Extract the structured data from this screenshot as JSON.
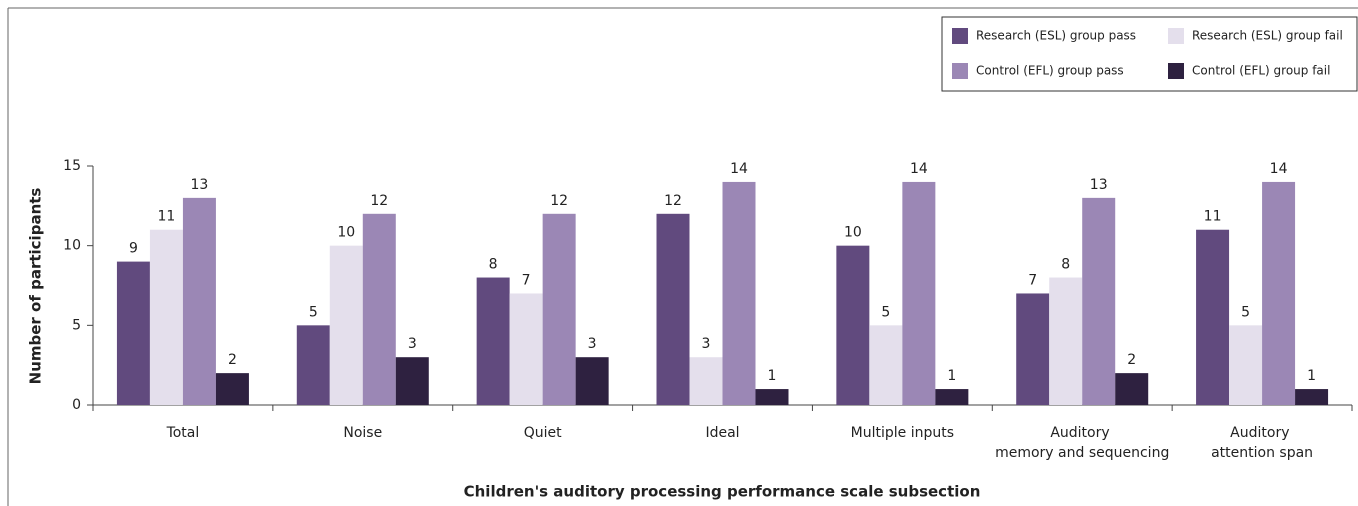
{
  "chart_data": {
    "type": "bar",
    "x_label": "Children's auditory processing performance scale subsection",
    "y_label": "Number of participants",
    "categories": [
      "Total",
      "Noise",
      "Quiet",
      "Ideal",
      "Multiple inputs",
      "Auditory memory and sequencing",
      "Auditory attention span"
    ],
    "series": [
      {
        "name": "Research (ESL) group pass",
        "color": "#614a7e",
        "values": [
          9,
          5,
          8,
          12,
          10,
          7,
          11
        ]
      },
      {
        "name": "Research (ESL) group fail",
        "color": "#e4dfec",
        "values": [
          11,
          10,
          7,
          3,
          5,
          8,
          5
        ]
      },
      {
        "name": "Control (EFL) group pass",
        "color": "#9b87b5",
        "values": [
          13,
          12,
          12,
          14,
          14,
          13,
          14
        ]
      },
      {
        "name": "Control (EFL) group fail",
        "color": "#2e2140",
        "values": [
          2,
          3,
          3,
          1,
          1,
          2,
          1
        ]
      }
    ],
    "ylim": [
      0,
      15
    ],
    "yticks": [
      0,
      5,
      10,
      15
    ],
    "legend": "top-right"
  }
}
